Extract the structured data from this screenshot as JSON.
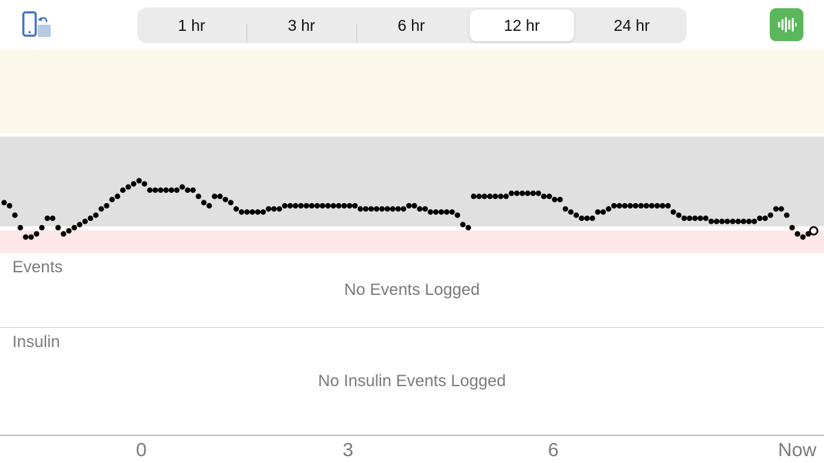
{
  "header": {
    "rotate_icon": "rotate-device-icon",
    "sound_icon": "sound-waveform-icon",
    "accent_green": "#5bb75b",
    "segments": [
      {
        "label": "1 hr",
        "selected": false
      },
      {
        "label": "3 hr",
        "selected": false
      },
      {
        "label": "6 hr",
        "selected": false
      },
      {
        "label": "12 hr",
        "selected": true
      },
      {
        "label": "24 hr",
        "selected": false
      }
    ]
  },
  "chart_data": {
    "type": "scatter",
    "xlabel": "",
    "ylabel": "",
    "x_ticks": [
      "0",
      "3",
      "6",
      "Now"
    ],
    "bands": {
      "high_color": "#fbf8ea",
      "in_range_color": "#e0e0e0",
      "low_color": "#fde7e7"
    },
    "series": [
      {
        "values": [
          0.51,
          0.5,
          0.47,
          0.43,
          0.4,
          0.4,
          0.41,
          0.43,
          0.46,
          0.46,
          0.43,
          0.41,
          0.42,
          0.43,
          0.44,
          0.45,
          0.46,
          0.47,
          0.49,
          0.5,
          0.52,
          0.53,
          0.55,
          0.56,
          0.57,
          0.58,
          0.57,
          0.55,
          0.55,
          0.55,
          0.55,
          0.55,
          0.55,
          0.56,
          0.55,
          0.55,
          0.53,
          0.51,
          0.5,
          0.53,
          0.53,
          0.52,
          0.51,
          0.49,
          0.48,
          0.48,
          0.48,
          0.48,
          0.48,
          0.49,
          0.49,
          0.49,
          0.5,
          0.5,
          0.5,
          0.5,
          0.5,
          0.5,
          0.5,
          0.5,
          0.5,
          0.5,
          0.5,
          0.5,
          0.5,
          0.5,
          0.49,
          0.49,
          0.49,
          0.49,
          0.49,
          0.49,
          0.49,
          0.49,
          0.49,
          0.5,
          0.5,
          0.49,
          0.49,
          0.48,
          0.48,
          0.48,
          0.48,
          0.48,
          0.47,
          0.44,
          0.43,
          0.53,
          0.53,
          0.53,
          0.53,
          0.53,
          0.53,
          0.53,
          0.54,
          0.54,
          0.54,
          0.54,
          0.54,
          0.54,
          0.53,
          0.53,
          0.52,
          0.52,
          0.49,
          0.48,
          0.47,
          0.46,
          0.46,
          0.46,
          0.48,
          0.48,
          0.49,
          0.5,
          0.5,
          0.5,
          0.5,
          0.5,
          0.5,
          0.5,
          0.5,
          0.5,
          0.5,
          0.5,
          0.48,
          0.47,
          0.46,
          0.46,
          0.46,
          0.46,
          0.46,
          0.45,
          0.45,
          0.45,
          0.45,
          0.45,
          0.45,
          0.45,
          0.45,
          0.45,
          0.46,
          0.46,
          0.47,
          0.49,
          0.49,
          0.47,
          0.43,
          0.41,
          0.4,
          0.41,
          0.42
        ]
      }
    ]
  },
  "events": {
    "title": "Events",
    "empty_message": "No Events Logged"
  },
  "insulin": {
    "title": "Insulin",
    "empty_message": "No Insulin Events Logged"
  },
  "x_axis": {
    "ticks": [
      {
        "label": "0"
      },
      {
        "label": "3"
      },
      {
        "label": "6"
      },
      {
        "label": "Now"
      }
    ]
  }
}
